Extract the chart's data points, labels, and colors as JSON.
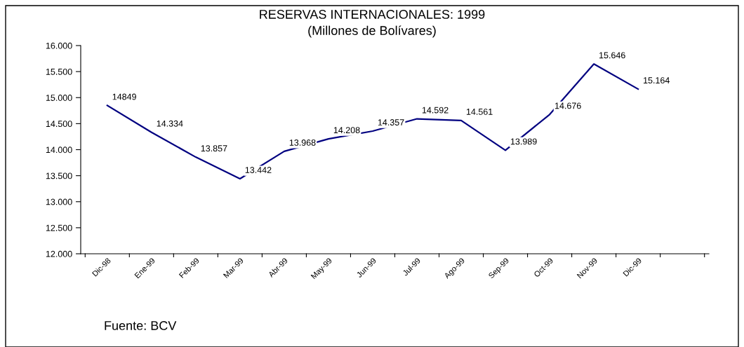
{
  "chart_data": {
    "type": "line",
    "title": "RESERVAS INTERNACIONALES: 1999",
    "subtitle": "(Millones de Bolívares)",
    "categories": [
      "Dic-98",
      "Ene-99",
      "Feb-99",
      "Mar-99",
      "Abr-99",
      "May-99",
      "Jun-99",
      "Jul-99",
      "Ago-99",
      "Sep-99",
      "Oct-99",
      "Nov-99",
      "Dic-99"
    ],
    "series": [
      {
        "color": "#000080",
        "values": [
          14849,
          14334,
          13857,
          13442,
          13968,
          14208,
          14357,
          14592,
          14561,
          13989,
          14676,
          15646,
          15164
        ],
        "value_labels": [
          "14849",
          "14.334",
          "13.857",
          "13.442",
          "13.968",
          "14.208",
          "14.357",
          "14.592",
          "14.561",
          "13.989",
          "14.676",
          "15.646",
          "15.164"
        ]
      }
    ],
    "ylim": [
      12000,
      16000
    ],
    "yticks": [
      {
        "value": 12000,
        "label": "12.000"
      },
      {
        "value": 12500,
        "label": "12.500"
      },
      {
        "value": 13000,
        "label": "13.000"
      },
      {
        "value": 13500,
        "label": "13.500"
      },
      {
        "value": 14000,
        "label": "14.000"
      },
      {
        "value": 14500,
        "label": "14.500"
      },
      {
        "value": 15000,
        "label": "15.000"
      },
      {
        "value": 15500,
        "label": "15.500"
      },
      {
        "value": 16000,
        "label": "16.000"
      }
    ],
    "grid": false,
    "legend": false,
    "marker": "none",
    "line_style": "solid",
    "annotations": [
      "Fuente: BCV"
    ]
  }
}
